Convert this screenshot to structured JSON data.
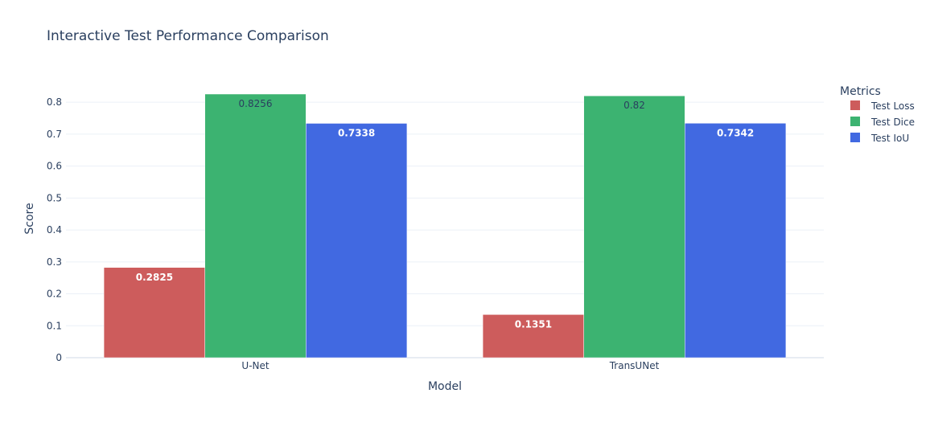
{
  "chart_data": {
    "type": "bar",
    "title": "Interactive Test Performance Comparison",
    "xlabel": "Model",
    "ylabel": "Score",
    "categories": [
      "U-Net",
      "TransUNet"
    ],
    "series": [
      {
        "name": "Test Loss",
        "color": "#cd5c5c",
        "values": [
          0.2825,
          0.1351
        ],
        "labels": [
          "0.2825",
          "0.1351"
        ],
        "label_color": "#ffffff"
      },
      {
        "name": "Test Dice",
        "color": "#3cb371",
        "values": [
          0.8256,
          0.82
        ],
        "labels": [
          "0.8256",
          "0.82"
        ],
        "label_color": "#2a3f5f"
      },
      {
        "name": "Test IoU",
        "color": "#4169e1",
        "values": [
          0.7338,
          0.7342
        ],
        "labels": [
          "0.7338",
          "0.7342"
        ],
        "label_color": "#ffffff"
      }
    ],
    "ylim": [
      0,
      0.8256
    ],
    "yticks": [
      0,
      0.1,
      0.2,
      0.3,
      0.4,
      0.5,
      0.6,
      0.7,
      0.8
    ],
    "ytick_labels": [
      "0",
      "0.1",
      "0.2",
      "0.3",
      "0.4",
      "0.5",
      "0.6",
      "0.7",
      "0.8"
    ],
    "legend": {
      "title": "Metrics",
      "position": "right-top"
    },
    "grid": true
  }
}
